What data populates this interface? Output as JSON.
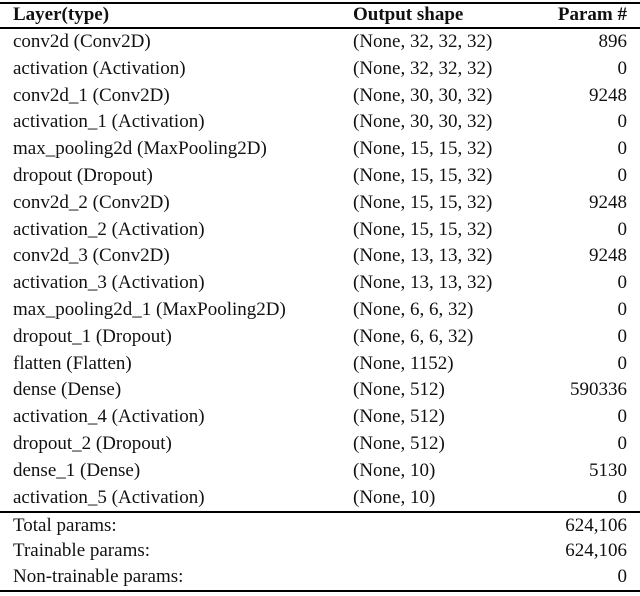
{
  "colors": {
    "background": "#ffffff",
    "text": "#111111",
    "rule": "#000000"
  },
  "table": {
    "columns": [
      "Layer(type)",
      "Output shape",
      "Param #"
    ],
    "rows": [
      {
        "layer": "conv2d (Conv2D)",
        "shape": "(None, 32, 32, 32)",
        "params": "896"
      },
      {
        "layer": "activation (Activation)",
        "shape": "(None, 32, 32, 32)",
        "params": "0"
      },
      {
        "layer": "conv2d_1 (Conv2D)",
        "shape": "(None, 30, 30, 32)",
        "params": "9248"
      },
      {
        "layer": "activation_1 (Activation)",
        "shape": "(None, 30, 30, 32)",
        "params": "0"
      },
      {
        "layer": "max_pooling2d (MaxPooling2D)",
        "shape": "(None, 15, 15, 32)",
        "params": "0"
      },
      {
        "layer": "dropout (Dropout)",
        "shape": "(None, 15, 15, 32)",
        "params": "0"
      },
      {
        "layer": "conv2d_2 (Conv2D)",
        "shape": "(None, 15, 15, 32)",
        "params": "9248"
      },
      {
        "layer": "activation_2 (Activation)",
        "shape": "(None, 15, 15, 32)",
        "params": "0"
      },
      {
        "layer": "conv2d_3 (Conv2D)",
        "shape": "(None, 13, 13, 32)",
        "params": "9248"
      },
      {
        "layer": "activation_3 (Activation)",
        "shape": "(None, 13, 13, 32)",
        "params": "0"
      },
      {
        "layer": "max_pooling2d_1 (MaxPooling2D)",
        "shape": "(None, 6, 6, 32)",
        "params": "0"
      },
      {
        "layer": "dropout_1 (Dropout)",
        "shape": "(None, 6, 6, 32)",
        "params": "0"
      },
      {
        "layer": "flatten (Flatten)",
        "shape": "(None, 1152)",
        "params": "0"
      },
      {
        "layer": "dense (Dense)",
        "shape": "(None, 512)",
        "params": "590336"
      },
      {
        "layer": "activation_4 (Activation)",
        "shape": "(None, 512)",
        "params": "0"
      },
      {
        "layer": "dropout_2 (Dropout)",
        "shape": "(None, 512)",
        "params": "0"
      },
      {
        "layer": "dense_1 (Dense)",
        "shape": "(None, 10)",
        "params": "5130"
      },
      {
        "layer": "activation_5 (Activation)",
        "shape": "(None, 10)",
        "params": "0"
      }
    ],
    "footer": [
      {
        "label": "Total params:",
        "value": "624,106"
      },
      {
        "label": "Trainable params:",
        "value": "624,106"
      },
      {
        "label": "Non-trainable params:",
        "value": "0"
      }
    ]
  },
  "chart_data": {
    "type": "table",
    "title": "",
    "columns": [
      "Layer(type)",
      "Output shape",
      "Param #"
    ],
    "rows": [
      [
        "conv2d (Conv2D)",
        "(None, 32, 32, 32)",
        896
      ],
      [
        "activation (Activation)",
        "(None, 32, 32, 32)",
        0
      ],
      [
        "conv2d_1 (Conv2D)",
        "(None, 30, 30, 32)",
        9248
      ],
      [
        "activation_1 (Activation)",
        "(None, 30, 30, 32)",
        0
      ],
      [
        "max_pooling2d (MaxPooling2D)",
        "(None, 15, 15, 32)",
        0
      ],
      [
        "dropout (Dropout)",
        "(None, 15, 15, 32)",
        0
      ],
      [
        "conv2d_2 (Conv2D)",
        "(None, 15, 15, 32)",
        9248
      ],
      [
        "activation_2 (Activation)",
        "(None, 15, 15, 32)",
        0
      ],
      [
        "conv2d_3 (Conv2D)",
        "(None, 13, 13, 32)",
        9248
      ],
      [
        "activation_3 (Activation)",
        "(None, 13, 13, 32)",
        0
      ],
      [
        "max_pooling2d_1 (MaxPooling2D)",
        "(None, 6, 6, 32)",
        0
      ],
      [
        "dropout_1 (Dropout)",
        "(None, 6, 6, 32)",
        0
      ],
      [
        "flatten (Flatten)",
        "(None, 1152)",
        0
      ],
      [
        "dense (Dense)",
        "(None, 512)",
        590336
      ],
      [
        "activation_4 (Activation)",
        "(None, 512)",
        0
      ],
      [
        "dropout_2 (Dropout)",
        "(None, 512)",
        0
      ],
      [
        "dense_1 (Dense)",
        "(None, 10)",
        5130
      ],
      [
        "activation_5 (Activation)",
        "(None, 10)",
        0
      ]
    ],
    "totals": {
      "total_params": "624,106",
      "trainable_params": "624,106",
      "non_trainable_params": "0"
    }
  }
}
